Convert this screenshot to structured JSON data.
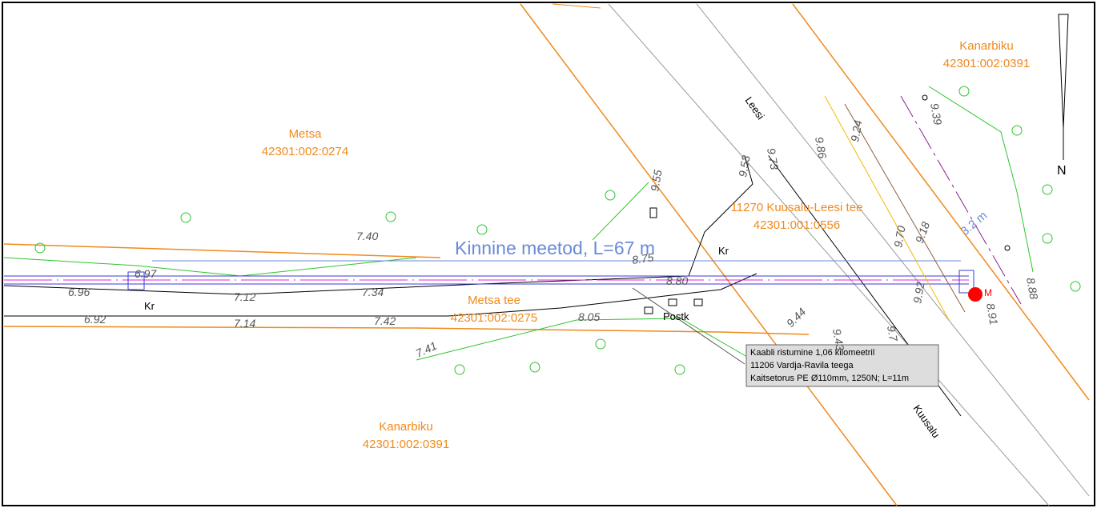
{
  "parcels": [
    {
      "name": "Metsa",
      "id": "42301:002:0274"
    },
    {
      "name": "Kanarbiku",
      "id": "42301:002:0391"
    },
    {
      "name": "11270 Kuusalu-Leesi tee",
      "id": "42301:001:0556"
    },
    {
      "name": "Metsa tee",
      "id": "42301:002:0275"
    },
    {
      "name": "Kanarbiku",
      "id": "42301:002:0391"
    }
  ],
  "method_label": "Kinnine meetod, L=67 m",
  "distance_label": "3.2 m",
  "marks": {
    "kr": "Kr",
    "postk": "Postk",
    "north": "N",
    "m": "M"
  },
  "roads": {
    "leesi": "Leesi",
    "kuusalu": "Kuusalu"
  },
  "callout": [
    "Kaabli ristumine 1,06 kilomeetril",
    "11206 Vardja-Ravila teega",
    "Kaitsetorus PE Ø110mm, 1250N; L=11m"
  ],
  "elevations": [
    "7.40",
    "6.97",
    "6.96",
    "7.12",
    "7.34",
    "6.92",
    "7.14",
    "7.42",
    "7.41",
    "8.05",
    "8.80",
    "8.75",
    "9.55",
    "9.53",
    "9.73",
    "9.86",
    "9.24",
    "9.39",
    "9.18",
    "9.70",
    "8.88",
    "8.91",
    "9.92",
    "9.44",
    "9.43",
    "9.7"
  ]
}
